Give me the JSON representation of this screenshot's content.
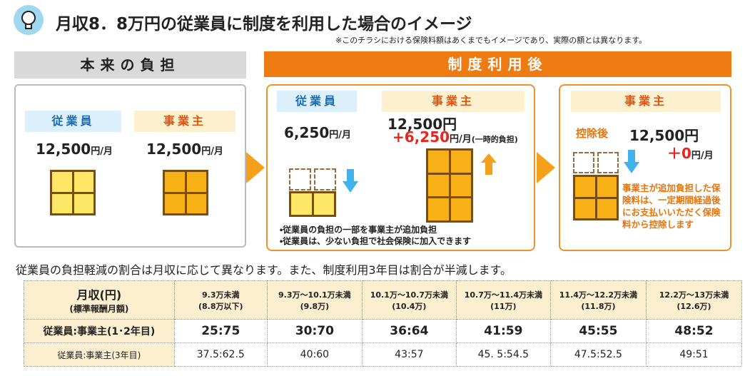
{
  "header": {
    "title": "月収8．8万円の従業員に制度を利用した場合のイメージ",
    "note": "※このチラシにおける保険料額はあくまでもイメージであり、実際の額とは異なります。"
  },
  "panels": {
    "before": {
      "title": "本来の負担",
      "employee": {
        "label": "従業員",
        "amount": "12,500",
        "unit": "円/月"
      },
      "employer": {
        "label": "事業主",
        "amount": "12,500",
        "unit": "円/月"
      }
    },
    "after": {
      "title": "制度利用後",
      "employee": {
        "label": "従業員",
        "amount": "6,250",
        "unit": "円/月"
      },
      "employer": {
        "label": "事業主",
        "amount": "12,500円",
        "extra": "+6,250",
        "unit": "円/月",
        "note": "(一時的負担)"
      },
      "bullets": [
        "・従業員の負担の一部を事業主が追加負担",
        "・従業員は、少ない負担で社会保険に加入できます"
      ]
    },
    "deduction": {
      "label": "事業主",
      "tag": "控除後",
      "amount": "12,500円",
      "extra": "＋0",
      "unit": "円/月",
      "note": "事業主が追加負担した保険料は、一定期間経過後にお支払いいただく保険料から控除します"
    }
  },
  "summary": "従業員の負担軽減の割合は月収に応じて異なります。また、制度利用3年目は割合が半減します。",
  "table": {
    "header": [
      [
        "月収(円)",
        "(標準報酬月額)"
      ],
      [
        "9.3万未満",
        "(8.8万以下)"
      ],
      [
        "9.3万～10.1万未満",
        "(9.8万)"
      ],
      [
        "10.1万～10.7万未満",
        "(10.4万)"
      ],
      [
        "10.7万～11.4万未満",
        "(11万)"
      ],
      [
        "11.4万～12.2万未満",
        "(11.8万)"
      ],
      [
        "12.2万～13万未満",
        "(12.6万)"
      ]
    ],
    "rows": [
      [
        "従業員:事業主(1･2年目)",
        "25:75",
        "30:70",
        "36:64",
        "41:59",
        "45:55",
        "48:52"
      ],
      [
        "従業員:事業主(3年目)",
        "37.5:62.5",
        "40:60",
        "43:57",
        "45. 5:54.5",
        "47.5:52.5",
        "49:51"
      ]
    ]
  }
}
